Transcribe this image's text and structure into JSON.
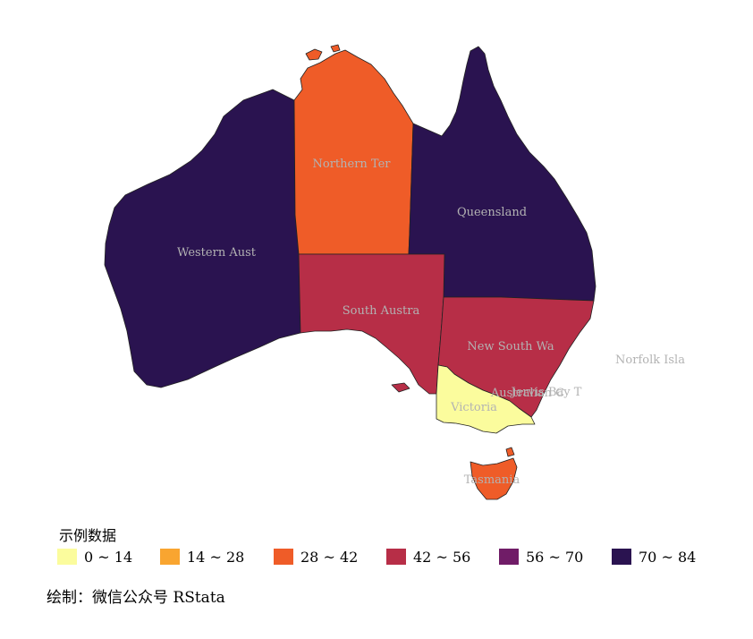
{
  "map": {
    "regions": [
      {
        "id": "WA",
        "label": "Western Aust",
        "class": "70 ~ 84",
        "color": "#2a1350"
      },
      {
        "id": "NT",
        "label": "Northern Ter",
        "class": "28 ~ 42",
        "color": "#ef5c28"
      },
      {
        "id": "QLD",
        "label": "Queensland",
        "class": "70 ~ 84",
        "color": "#2a1350"
      },
      {
        "id": "SA",
        "label": "South Austra",
        "class": "42 ~ 56",
        "color": "#b72e47"
      },
      {
        "id": "NSW",
        "label": "New South Wa",
        "class": "42 ~ 56",
        "color": "#b72e47"
      },
      {
        "id": "VIC",
        "label": "Victoria",
        "class": "0 ~ 14",
        "color": "#fbfc9d"
      },
      {
        "id": "TAS",
        "label": "Tasmania",
        "class": "28 ~ 42",
        "color": "#ef5c28"
      },
      {
        "id": "ACT",
        "label": "Australian C",
        "class": "",
        "color": ""
      },
      {
        "id": "JBT",
        "label": "Jervis Bay T",
        "class": "",
        "color": ""
      },
      {
        "id": "NI",
        "label": "Norfolk Isla",
        "class": "",
        "color": ""
      }
    ]
  },
  "legend": {
    "title": "示例数据",
    "items": [
      {
        "label": "0 ~ 14",
        "color": "#fbfc9d"
      },
      {
        "label": "14 ~ 28",
        "color": "#f9a530"
      },
      {
        "label": "28 ~ 42",
        "color": "#ef5c28"
      },
      {
        "label": "42 ~ 56",
        "color": "#b72e47"
      },
      {
        "label": "56 ~ 70",
        "color": "#701c67"
      },
      {
        "label": "70 ~ 84",
        "color": "#2a1350"
      }
    ]
  },
  "caption": "绘制：微信公众号 RStata"
}
